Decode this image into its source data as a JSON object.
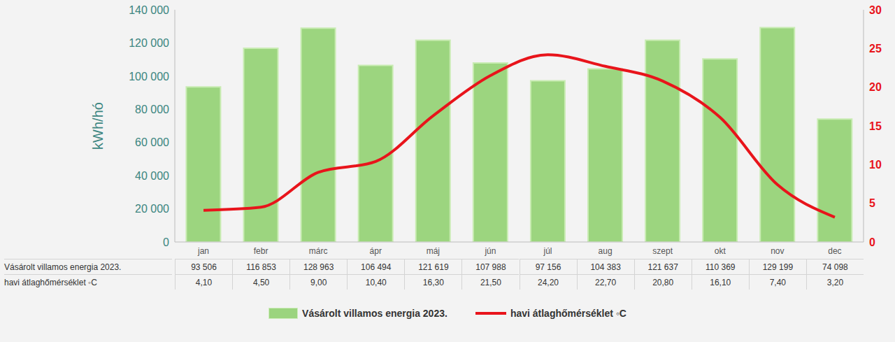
{
  "chart_data": {
    "type": "bar",
    "categories": [
      "jan",
      "febr",
      "márc",
      "ápr",
      "máj",
      "jún",
      "júl",
      "aug",
      "szept",
      "okt",
      "nov",
      "dec"
    ],
    "series": [
      {
        "name": "Vásárolt villamos energia 2023.",
        "type": "bar",
        "color": "#8ccf6a",
        "values": [
          93506,
          116853,
          128963,
          106494,
          121619,
          107988,
          97156,
          104383,
          121637,
          110369,
          129199,
          74098
        ],
        "value_labels": [
          "93 506",
          "116 853",
          "128 963",
          "106 494",
          "121 619",
          "107 988",
          "97 156",
          "104 383",
          "121 637",
          "110 369",
          "129 199",
          "74 098"
        ]
      },
      {
        "name": "havi átlaghőmérséklet ◦C",
        "type": "line",
        "axis": "y2",
        "color": "#e8141b",
        "values": [
          4.1,
          4.5,
          9.0,
          10.4,
          16.3,
          21.5,
          24.2,
          22.7,
          20.8,
          16.1,
          7.4,
          3.2
        ],
        "value_labels": [
          "4,10",
          "4,50",
          "9,00",
          "10,40",
          "16,30",
          "21,50",
          "24,20",
          "22,70",
          "20,80",
          "16,10",
          "7,40",
          "3,20"
        ]
      }
    ],
    "y_label": "kWh/hó",
    "ylim": [
      0,
      140000
    ],
    "yticks": [
      0,
      {
        "value": 20000,
        "label": "20 000"
      },
      {
        "value": 40000,
        "label": "40 000"
      },
      {
        "value": 60000,
        "label": "60 000"
      },
      {
        "value": 80000,
        "label": "80 000"
      },
      {
        "value": 100000,
        "label": "100 000"
      },
      {
        "value": 120000,
        "label": "120 000"
      },
      {
        "value": 140000,
        "label": "140 000"
      }
    ],
    "y2lim": [
      0,
      30
    ],
    "y2ticks": [
      0,
      5,
      10,
      15,
      20,
      25,
      30
    ],
    "grid": false,
    "legend": "bottom"
  }
}
